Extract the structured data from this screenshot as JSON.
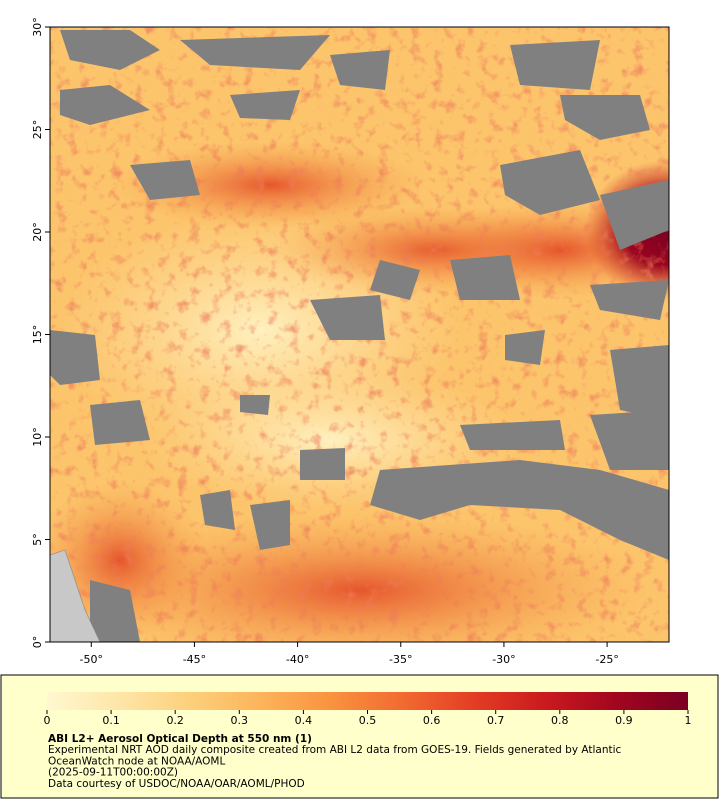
{
  "map": {
    "xlim": [
      -52,
      -22
    ],
    "ylim": [
      0,
      30
    ],
    "xticks": [
      {
        "value": -50,
        "label": "-50°"
      },
      {
        "value": -45,
        "label": "-45°"
      },
      {
        "value": -40,
        "label": "-40°"
      },
      {
        "value": -35,
        "label": "-35°"
      },
      {
        "value": -30,
        "label": "-30°"
      },
      {
        "value": -25,
        "label": "-25°"
      }
    ],
    "yticks": [
      {
        "value": 0,
        "label": "0°"
      },
      {
        "value": 5,
        "label": "5°"
      },
      {
        "value": 10,
        "label": "10°"
      },
      {
        "value": 15,
        "label": "15°"
      },
      {
        "value": 20,
        "label": "20°"
      },
      {
        "value": 25,
        "label": "25°"
      },
      {
        "value": 30,
        "label": "30°"
      }
    ]
  },
  "colorbar": {
    "clim": [
      0,
      1
    ],
    "ticks": [
      0,
      0.1,
      0.2,
      0.3,
      0.4,
      0.5,
      0.6,
      0.7,
      0.8,
      0.9,
      1
    ],
    "colors": [
      "#fff8d0",
      "#fee6a8",
      "#fdd07c",
      "#fcb45a",
      "#f9923f",
      "#f26a30",
      "#e33d24",
      "#c91a1e",
      "#a1061f",
      "#7a0022"
    ]
  },
  "caption": {
    "title": "ABI L2+ Aerosol Optical Depth at 550 nm (1)",
    "lines": [
      "Experimental NRT AOD daily composite created from ABI L2 data from GOES-19. Fields generated by Atlantic",
      "OceanWatch node at NOAA/AOML",
      "(2025-09-11T00:00:00Z)",
      "Data courtesy of USDOC/NOAA/OAR/AOML/PHOD"
    ]
  }
}
